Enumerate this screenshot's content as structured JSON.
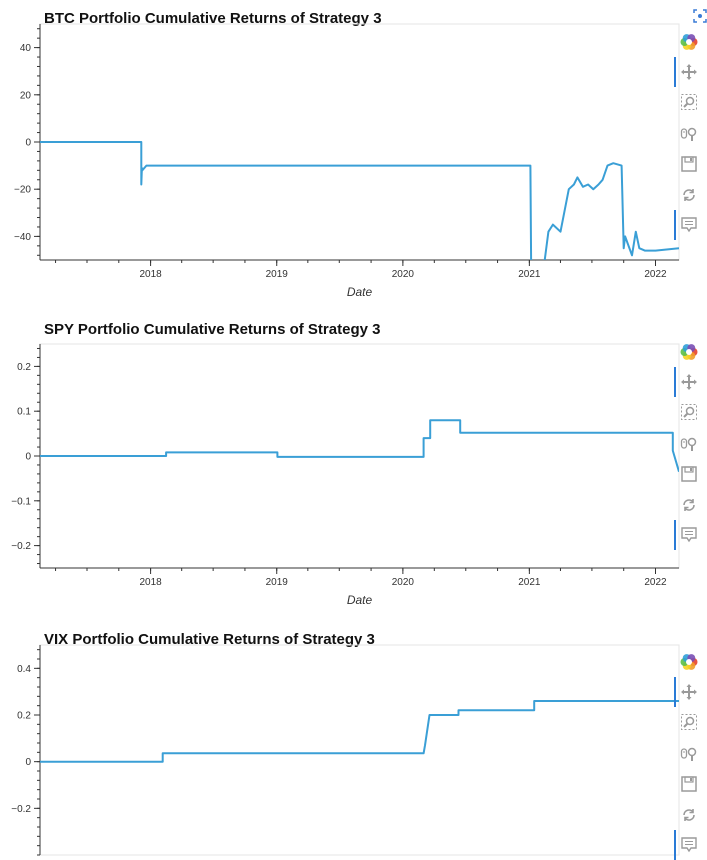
{
  "charts": [
    {
      "title": "BTC Portfolio Cumulative Returns of Strategy 3",
      "xlabel": "Date",
      "x_ticks": [
        "2018",
        "2019",
        "2020",
        "2021",
        "2022"
      ],
      "y_ticks": [
        "40",
        "20",
        "0",
        "−20",
        "−40"
      ]
    },
    {
      "title": "SPY Portfolio Cumulative Returns of Strategy 3",
      "xlabel": "Date",
      "x_ticks": [
        "2018",
        "2019",
        "2020",
        "2021",
        "2022"
      ],
      "y_ticks": [
        "0.2",
        "0.1",
        "0",
        "−0.1",
        "−0.2"
      ]
    },
    {
      "title": "VIX Portfolio Cumulative Returns of Strategy 3",
      "xlabel": "",
      "x_ticks": [],
      "y_ticks": [
        "0.4",
        "0.2",
        "0",
        "−0.2"
      ]
    }
  ],
  "toolbar": {
    "icons": [
      "bokeh-logo-icon",
      "pan-icon",
      "box-zoom-icon",
      "wheel-zoom-icon",
      "save-icon",
      "reset-icon",
      "hover-icon"
    ],
    "accent_color": "#2a7bd6"
  },
  "line_color": "#3a9fd6",
  "chart_data": [
    {
      "type": "line",
      "title": "BTC Portfolio Cumulative Returns of Strategy 3",
      "xlabel": "Date",
      "ylabel": "",
      "xlim": [
        "2017-02-15",
        "2022-03-10"
      ],
      "ylim": [
        -50,
        50
      ],
      "grid": false,
      "series": [
        {
          "x": [
            "2017-02-15",
            "2017-12-05",
            "2017-12-05",
            "2017-12-07",
            "2017-12-08",
            "2017-12-20",
            "2018-12-31",
            "2020-12-31",
            "2021-01-04",
            "2021-01-06",
            "2021-01-07",
            "2021-02-10",
            "2021-02-25",
            "2021-03-10",
            "2021-04-01",
            "2021-04-25",
            "2021-05-10",
            "2021-05-20",
            "2021-06-05",
            "2021-06-20",
            "2021-07-05",
            "2021-07-20",
            "2021-08-01",
            "2021-08-15",
            "2021-09-01",
            "2021-09-25",
            "2021-10-01",
            "2021-10-05",
            "2021-10-25",
            "2021-11-05",
            "2021-11-15",
            "2021-12-01",
            "2022-01-01",
            "2022-03-10"
          ],
          "y": [
            0,
            0,
            -18,
            -11,
            -12,
            -10,
            -10,
            -10,
            -10,
            -50,
            -55,
            -55,
            -38,
            -35,
            -38,
            -20,
            -18,
            -15,
            -19,
            -18,
            -20,
            -18,
            -16,
            -10,
            -9,
            -10,
            -45,
            -40,
            -48,
            -38,
            -45,
            -46,
            -46,
            -45
          ]
        }
      ]
    },
    {
      "type": "line",
      "title": "SPY Portfolio Cumulative Returns of Strategy 3",
      "xlabel": "Date",
      "ylabel": "",
      "xlim": [
        "2017-02-15",
        "2022-03-10"
      ],
      "ylim": [
        -0.25,
        0.25
      ],
      "grid": false,
      "series": [
        {
          "x": [
            "2017-02-15",
            "2018-02-15",
            "2018-02-15",
            "2019-01-03",
            "2019-01-03",
            "2020-03-01",
            "2020-03-01",
            "2020-03-20",
            "2020-03-20",
            "2020-06-15",
            "2020-06-15",
            "2022-02-20",
            "2022-02-20",
            "2022-03-10"
          ],
          "y": [
            0,
            0,
            0.008,
            0.008,
            -0.002,
            -0.002,
            0.04,
            0.04,
            0.08,
            0.08,
            0.052,
            0.052,
            0.012,
            -0.035
          ]
        }
      ]
    },
    {
      "type": "line",
      "title": "VIX Portfolio Cumulative Returns of Strategy 3",
      "xlabel": "",
      "ylabel": "",
      "xlim": [
        "2017-02-15",
        "2022-03-10"
      ],
      "ylim": [
        -0.4,
        0.5
      ],
      "grid": false,
      "series": [
        {
          "x": [
            "2017-02-15",
            "2018-02-05",
            "2018-02-05",
            "2020-03-01",
            "2020-03-05",
            "2020-03-18",
            "2020-06-10",
            "2020-06-10",
            "2021-01-15",
            "2021-01-15",
            "2022-03-10"
          ],
          "y": [
            0,
            0,
            0.036,
            0.036,
            0.07,
            0.2,
            0.2,
            0.22,
            0.22,
            0.26,
            0.26
          ]
        }
      ]
    }
  ]
}
